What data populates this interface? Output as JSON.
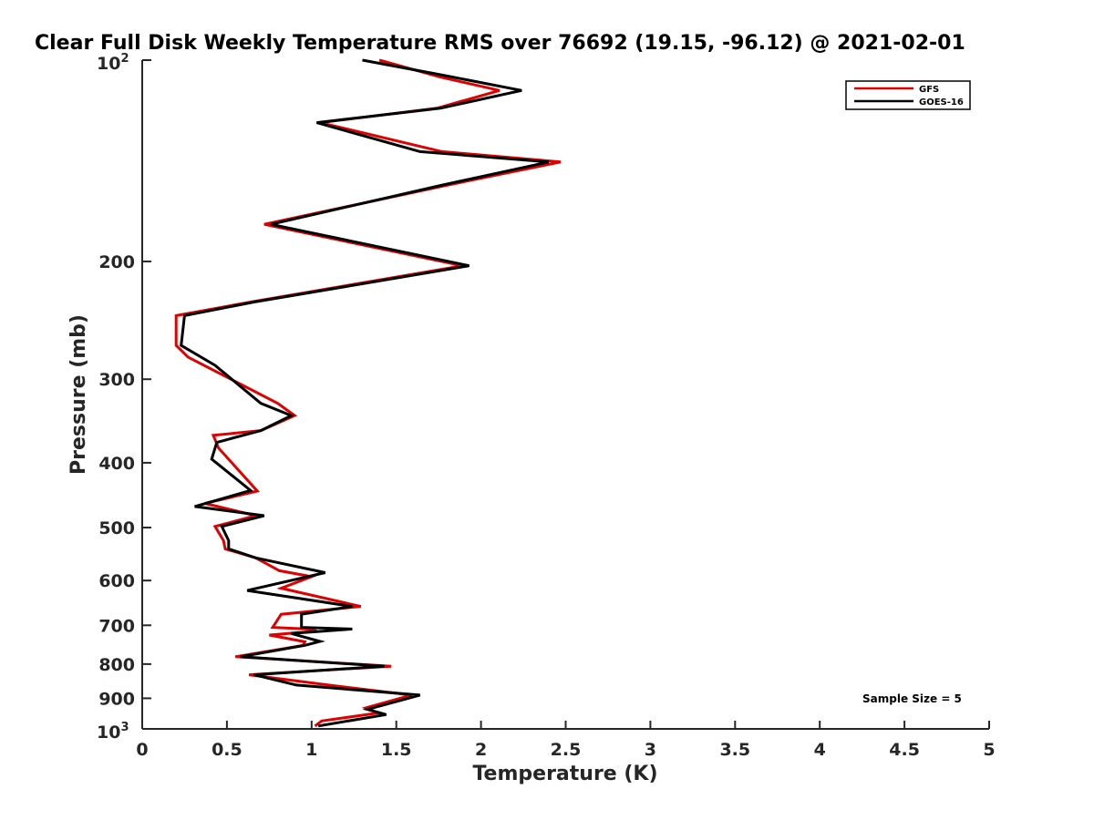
{
  "chart_data": {
    "type": "line",
    "title": "Clear Full Disk Weekly Temperature RMS over 76692 (19.15, -96.12) @ 2021-02-01",
    "xlabel": "Temperature (K)",
    "ylabel": "Pressure (mb)",
    "xlim": [
      0,
      5
    ],
    "ylim": [
      100,
      1000
    ],
    "y_scale": "log",
    "y_reversed": true,
    "x_ticks": [
      0,
      0.5,
      1,
      1.5,
      2,
      2.5,
      3,
      3.5,
      4,
      4.5,
      5
    ],
    "x_tick_labels": [
      "0",
      "0.5",
      "1",
      "1.5",
      "2",
      "2.5",
      "3",
      "3.5",
      "4",
      "4.5",
      "5"
    ],
    "y_ticks": [
      200,
      300,
      400,
      500,
      600,
      700,
      800,
      900
    ],
    "y_tick_labels": [
      "200",
      "300",
      "400",
      "500",
      "600",
      "700",
      "800",
      "900"
    ],
    "y_end_labels": {
      "base": "10",
      "top_exp": "2",
      "bottom_exp": "3"
    },
    "grid": false,
    "legend_position": "top-right",
    "annotation": "Sample Size = 5",
    "series": [
      {
        "name": "GFS",
        "color": "#e00000",
        "points": [
          [
            1.4,
            100
          ],
          [
            1.76,
            106
          ],
          [
            2.11,
            111
          ],
          [
            1.74,
            118
          ],
          [
            1.05,
            124
          ],
          [
            1.77,
            137
          ],
          [
            2.47,
            142
          ],
          [
            1.79,
            154
          ],
          [
            0.72,
            176
          ],
          [
            1.89,
            203
          ],
          [
            0.64,
            230
          ],
          [
            0.2,
            241
          ],
          [
            0.2,
            267
          ],
          [
            0.27,
            278
          ],
          [
            0.8,
            326
          ],
          [
            0.9,
            340
          ],
          [
            0.7,
            358
          ],
          [
            0.42,
            364
          ],
          [
            0.45,
            380
          ],
          [
            0.68,
            441
          ],
          [
            0.37,
            460
          ],
          [
            0.67,
            480
          ],
          [
            0.43,
            498
          ],
          [
            0.48,
            523
          ],
          [
            0.49,
            538
          ],
          [
            0.67,
            555
          ],
          [
            0.81,
            580
          ],
          [
            1.0,
            592
          ],
          [
            0.82,
            616
          ],
          [
            1.29,
            656
          ],
          [
            0.82,
            674
          ],
          [
            0.77,
            705
          ],
          [
            0.98,
            709
          ],
          [
            1.03,
            714
          ],
          [
            0.75,
            724
          ],
          [
            0.96,
            741
          ],
          [
            0.95,
            750
          ],
          [
            0.55,
            780
          ],
          [
            1.47,
            806
          ],
          [
            0.63,
            830
          ],
          [
            1.1,
            860
          ],
          [
            1.59,
            890
          ],
          [
            1.32,
            930
          ],
          [
            1.39,
            947
          ],
          [
            1.06,
            973
          ],
          [
            1.02,
            990
          ]
        ]
      },
      {
        "name": "GOES-16",
        "color": "#000000",
        "points": [
          [
            1.3,
            100
          ],
          [
            1.75,
            105
          ],
          [
            2.24,
            111
          ],
          [
            1.76,
            118
          ],
          [
            1.03,
            124
          ],
          [
            1.64,
            137
          ],
          [
            2.4,
            142
          ],
          [
            1.76,
            154
          ],
          [
            0.76,
            176
          ],
          [
            1.93,
            203
          ],
          [
            0.66,
            230
          ],
          [
            0.25,
            241
          ],
          [
            0.23,
            267
          ],
          [
            0.43,
            286
          ],
          [
            0.7,
            326
          ],
          [
            0.88,
            340
          ],
          [
            0.7,
            358
          ],
          [
            0.44,
            373
          ],
          [
            0.41,
            395
          ],
          [
            0.64,
            440
          ],
          [
            0.31,
            465
          ],
          [
            0.72,
            480
          ],
          [
            0.47,
            498
          ],
          [
            0.51,
            523
          ],
          [
            0.51,
            538
          ],
          [
            0.67,
            555
          ],
          [
            1.08,
            584
          ],
          [
            0.62,
            621
          ],
          [
            1.24,
            656
          ],
          [
            0.94,
            674
          ],
          [
            0.94,
            705
          ],
          [
            1.24,
            709
          ],
          [
            0.88,
            720
          ],
          [
            1.05,
            740
          ],
          [
            0.96,
            750
          ],
          [
            0.58,
            780
          ],
          [
            1.43,
            806
          ],
          [
            0.66,
            830
          ],
          [
            0.91,
            860
          ],
          [
            1.64,
            890
          ],
          [
            1.33,
            935
          ],
          [
            1.44,
            952
          ],
          [
            1.04,
            990
          ]
        ]
      }
    ]
  }
}
